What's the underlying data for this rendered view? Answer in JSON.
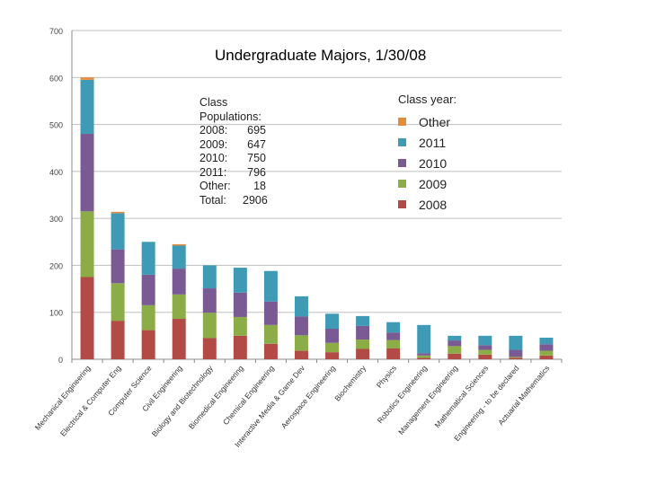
{
  "chart_data": {
    "type": "bar",
    "stacked": true,
    "title": "Undergraduate Majors, 1/30/08",
    "xlabel": "",
    "ylabel": "",
    "ylim": [
      0,
      700
    ],
    "yticks": [
      0,
      100,
      200,
      300,
      400,
      500,
      600,
      700
    ],
    "grid": true,
    "categories": [
      "Mechanical Engineering",
      "Electrical & Computer Eng",
      "Computer Science",
      "Civil Engineering",
      "Biology and Biotechnology",
      "Biomedical Engineering",
      "Chemical Engineering",
      "Interactive Media & Game Dev",
      "Aerospace Engineering",
      "Biochemistry",
      "Physics",
      "Robotics Engineering",
      "Management Engineering",
      "Mathematical Sciences",
      "Engineering - to be declared",
      "Actuarial Mathematics"
    ],
    "series": [
      {
        "name": "2008",
        "color": "#b24a46",
        "values": [
          175,
          82,
          62,
          86,
          45,
          50,
          33,
          18,
          15,
          22,
          23,
          3,
          12,
          10,
          3,
          8
        ]
      },
      {
        "name": "2009",
        "color": "#8bac47",
        "values": [
          140,
          80,
          53,
          52,
          54,
          40,
          40,
          33,
          20,
          20,
          18,
          5,
          16,
          10,
          2,
          10
        ]
      },
      {
        "name": "2010",
        "color": "#7a5a93",
        "values": [
          165,
          72,
          65,
          55,
          52,
          52,
          50,
          40,
          30,
          29,
          16,
          5,
          12,
          10,
          15,
          14
        ]
      },
      {
        "name": "2011",
        "color": "#3f9ab5",
        "values": [
          115,
          77,
          70,
          49,
          49,
          53,
          65,
          43,
          32,
          21,
          22,
          60,
          10,
          20,
          30,
          14
        ]
      },
      {
        "name": "Other",
        "color": "#e58c3c",
        "values": [
          5,
          3,
          0,
          3,
          0,
          0,
          0,
          0,
          0,
          0,
          0,
          0,
          0,
          0,
          0,
          0
        ]
      }
    ],
    "legend": {
      "title": "Class year:",
      "placement": "top-right",
      "order": [
        "Other",
        "2011",
        "2010",
        "2009",
        "2008"
      ]
    },
    "annotation": {
      "heading": [
        "Class",
        "Populations:"
      ],
      "rows": [
        {
          "label": "2008:",
          "value": "695"
        },
        {
          "label": "2009:",
          "value": "647"
        },
        {
          "label": "2010:",
          "value": "750"
        },
        {
          "label": "2011:",
          "value": "796"
        },
        {
          "label": "Other:",
          "value": "18"
        },
        {
          "label": "Total:",
          "value": "2906"
        }
      ]
    }
  }
}
